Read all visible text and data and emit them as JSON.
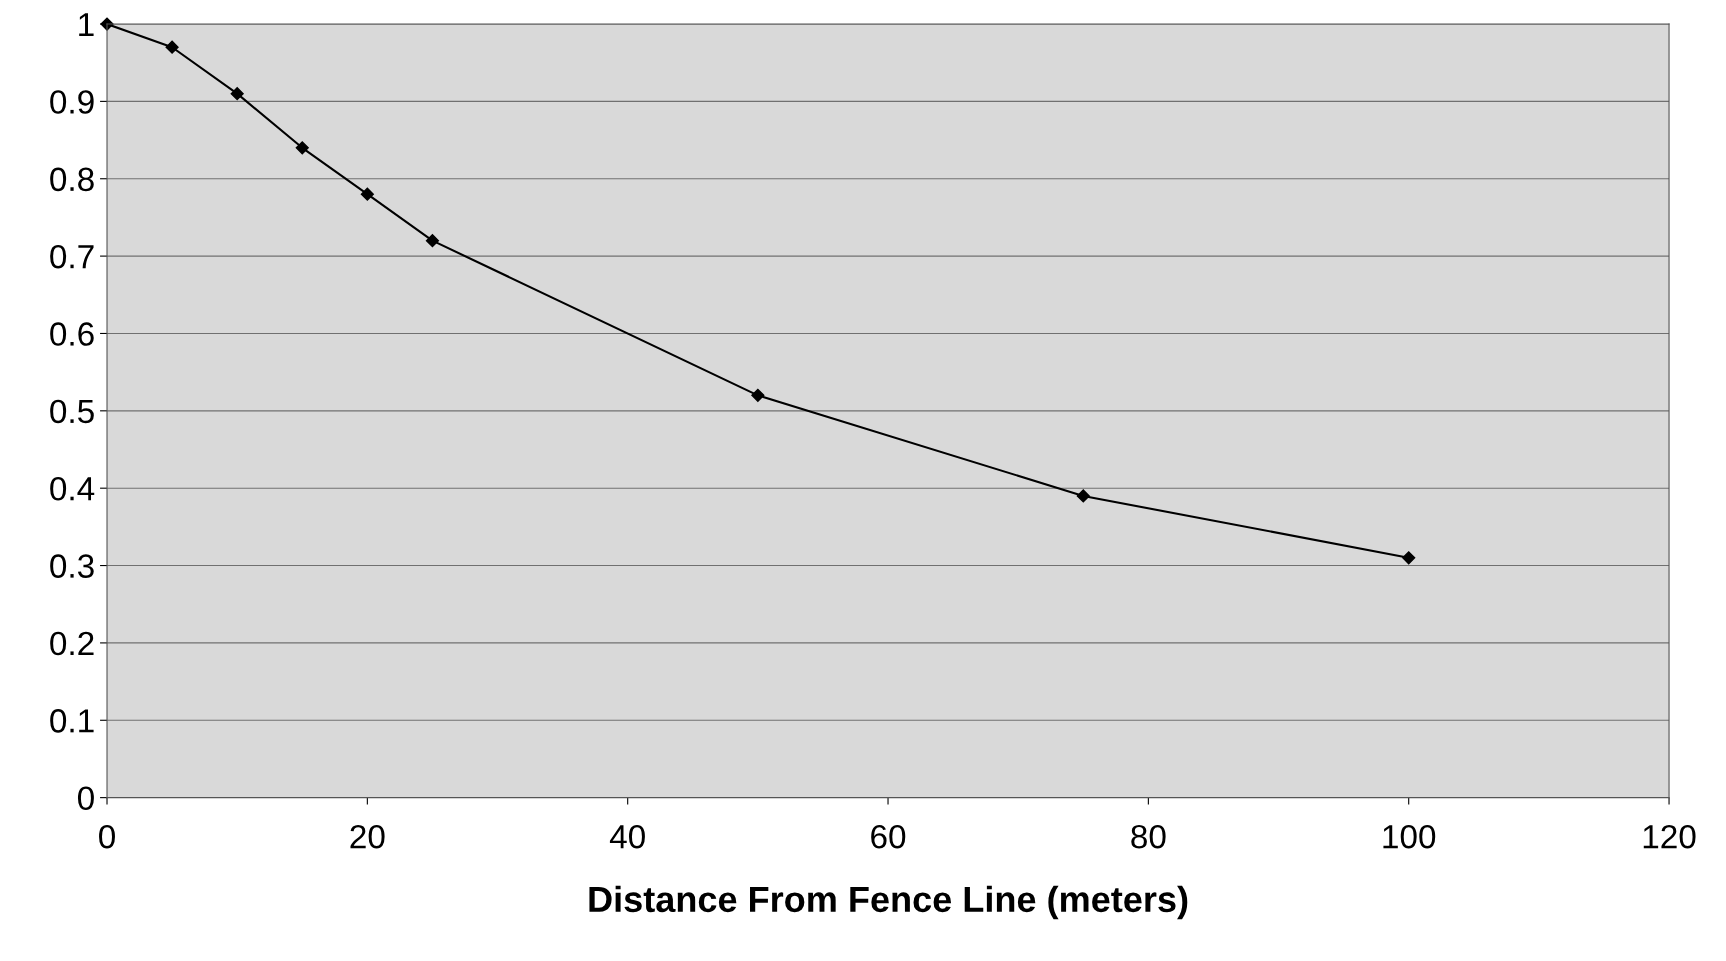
{
  "chart_data": {
    "type": "line",
    "xlabel": "Distance From Fence Line (meters)",
    "x": [
      0,
      5,
      10,
      15,
      20,
      25,
      50,
      75,
      100
    ],
    "series": [
      {
        "color": "#000000",
        "values": [
          1.0,
          0.97,
          0.91,
          0.84,
          0.78,
          0.72,
          0.52,
          0.39,
          0.31
        ]
      }
    ],
    "xlim": [
      0,
      120
    ],
    "xticks": [
      0,
      20,
      40,
      60,
      80,
      100,
      120
    ],
    "ylim": [
      0,
      1
    ],
    "yticks": [
      0,
      0.1,
      0.2,
      0.3,
      0.4,
      0.5,
      0.6,
      0.7,
      0.8,
      0.9,
      1
    ],
    "grid": "y",
    "marker": "diamond",
    "line_style": "solid"
  }
}
